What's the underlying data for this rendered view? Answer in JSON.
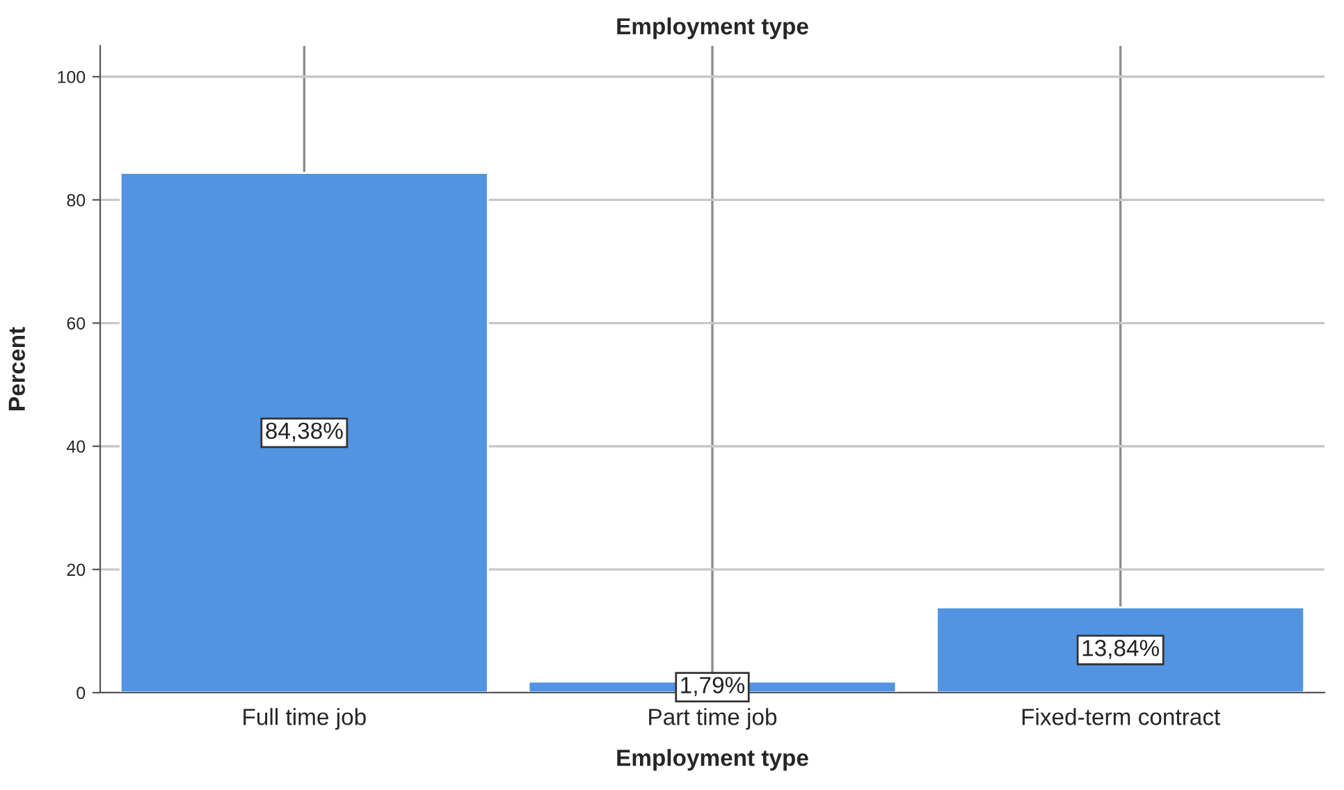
{
  "chart_data": {
    "type": "bar",
    "title": "Employment type",
    "xlabel": "Employment type",
    "ylabel": "Percent",
    "categories": [
      "Full time job",
      "Part time job",
      "Fixed-term contract"
    ],
    "values": [
      84.38,
      1.79,
      13.84
    ],
    "value_labels": [
      "84,38%",
      "1,79%",
      "13,84%"
    ],
    "color": "#5294e2",
    "ylim": [
      0,
      105
    ],
    "yticks": [
      0,
      20,
      40,
      60,
      80,
      100
    ],
    "grid": true
  }
}
